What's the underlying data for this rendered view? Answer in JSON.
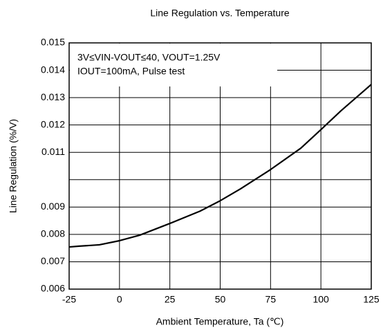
{
  "chart_data": {
    "type": "line",
    "title": "Line Regulation vs. Temperature",
    "x_label": "Ambient Temperature, Ta (℃)",
    "y_label": "Line Regulation (%/V)",
    "annotations": [
      "3V≤VIN-VOUT≤40, VOUT=1.25V",
      "IOUT=100mA, Pulse test"
    ],
    "x": [
      -25,
      -20,
      -10,
      0,
      10,
      25,
      40,
      50,
      60,
      75,
      90,
      100,
      110,
      125
    ],
    "series": [
      {
        "name": "Line Regulation",
        "color": "#000000",
        "values": [
          0.00754,
          0.00757,
          0.00762,
          0.00777,
          0.00797,
          0.0084,
          0.00885,
          0.00923,
          0.00966,
          0.01037,
          0.01115,
          0.01183,
          0.01252,
          0.01348
        ]
      }
    ],
    "xlim": [
      -25,
      125
    ],
    "xticks": [
      -25,
      0,
      25,
      50,
      75,
      100,
      125
    ],
    "ylim": [
      0.006,
      0.015
    ],
    "yticks": [
      0.015,
      0.014,
      0.013,
      0.012,
      0.011,
      0.009,
      0.008,
      0.007,
      0.006
    ],
    "ygrid": [
      0.006,
      0.007,
      0.008,
      0.009,
      0.01,
      0.011,
      0.012,
      0.013,
      0.014,
      0.015
    ],
    "grid": true
  }
}
